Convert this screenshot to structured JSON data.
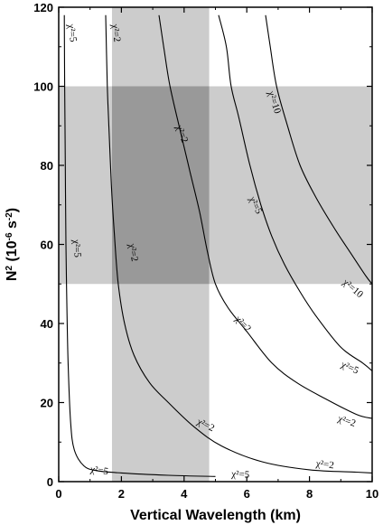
{
  "chart_data": {
    "type": "contour",
    "xlabel": "Vertical Wavelength (km)",
    "ylabel_main": "N",
    "ylabel_sup": "2",
    "ylabel_rest1": " (10",
    "ylabel_exp1": "-6",
    "ylabel_rest2": " s",
    "ylabel_exp2": "-2",
    "ylabel_end": ")",
    "xlim": [
      0,
      10
    ],
    "ylim": [
      0,
      120
    ],
    "x_ticks": [
      0,
      2,
      4,
      6,
      8,
      10
    ],
    "y_ticks": [
      0,
      20,
      40,
      60,
      80,
      100,
      120
    ],
    "x_tick_labels": [
      "0",
      "2",
      "4",
      "6",
      "8",
      "10"
    ],
    "y_tick_labels": [
      "0",
      "20",
      "40",
      "60",
      "80",
      "100",
      "120"
    ],
    "shaded_regions": [
      {
        "x": [
          1.7,
          4.8
        ],
        "y": [
          0,
          120
        ],
        "color": "#cccccc"
      },
      {
        "x": [
          0,
          10
        ],
        "y": [
          50,
          100
        ],
        "color": "#cccccc"
      }
    ],
    "overlap_color": "#999999",
    "contours": [
      {
        "name": "χ²=5 (left)",
        "points": [
          [
            0.18,
            118
          ],
          [
            0.19,
            100
          ],
          [
            0.21,
            80
          ],
          [
            0.23,
            60
          ],
          [
            0.26,
            45
          ],
          [
            0.3,
            30
          ],
          [
            0.38,
            15
          ],
          [
            0.5,
            8
          ],
          [
            0.8,
            4
          ],
          [
            1.2,
            2.8
          ],
          [
            2.0,
            2.2
          ],
          [
            3.5,
            1.6
          ],
          [
            5.0,
            1.3
          ]
        ]
      },
      {
        "name": "χ²=2 (left)",
        "points": [
          [
            1.5,
            118
          ],
          [
            1.55,
            100
          ],
          [
            1.6,
            90
          ],
          [
            1.68,
            75
          ],
          [
            1.78,
            62
          ],
          [
            1.9,
            50
          ],
          [
            2.1,
            40
          ],
          [
            2.4,
            32
          ],
          [
            2.9,
            25
          ],
          [
            3.5,
            20
          ],
          [
            4.3,
            14
          ],
          [
            5.2,
            9
          ],
          [
            6.5,
            5
          ],
          [
            8,
            3
          ],
          [
            9.5,
            2.4
          ],
          [
            10,
            2.2
          ]
        ]
      },
      {
        "name": "χ²=2 (right)",
        "points": [
          [
            3.2,
            118
          ],
          [
            3.35,
            110
          ],
          [
            3.55,
            100
          ],
          [
            3.9,
            88
          ],
          [
            4.2,
            78
          ],
          [
            4.5,
            68
          ],
          [
            4.75,
            58
          ],
          [
            5.0,
            50
          ],
          [
            5.4,
            44
          ],
          [
            6,
            38
          ],
          [
            6.8,
            30
          ],
          [
            7.6,
            25
          ],
          [
            8.5,
            21
          ],
          [
            9.5,
            17
          ],
          [
            10,
            16
          ]
        ]
      },
      {
        "name": "χ²=5",
        "points": [
          [
            5.1,
            118
          ],
          [
            5.35,
            110
          ],
          [
            5.5,
            100
          ],
          [
            5.75,
            92
          ],
          [
            6.1,
            80
          ],
          [
            6.45,
            70
          ],
          [
            6.8,
            62
          ],
          [
            7.2,
            55
          ],
          [
            7.7,
            48
          ],
          [
            8.2,
            42
          ],
          [
            9.0,
            34
          ],
          [
            9.7,
            30
          ],
          [
            10,
            28
          ]
        ]
      },
      {
        "name": "χ²=10",
        "points": [
          [
            6.6,
            118
          ],
          [
            6.75,
            110
          ],
          [
            6.95,
            100
          ],
          [
            7.3,
            90
          ],
          [
            7.7,
            80
          ],
          [
            8.2,
            72
          ],
          [
            8.8,
            64
          ],
          [
            9.3,
            58
          ],
          [
            9.8,
            52
          ],
          [
            10,
            50
          ]
        ]
      }
    ],
    "contour_labels": [
      {
        "text": "χ²=5",
        "x": 0.45,
        "y": 113.5,
        "angle": 82
      },
      {
        "text": "χ²=2",
        "x": 1.85,
        "y": 113.5,
        "angle": 82
      },
      {
        "text": "χ²=10",
        "x": 6.9,
        "y": 96,
        "angle": 72
      },
      {
        "text": "χ²=2",
        "x": 3.95,
        "y": 88,
        "angle": 68
      },
      {
        "text": "χ²=5",
        "x": 6.3,
        "y": 70,
        "angle": 64
      },
      {
        "text": "χ²=5",
        "x": 0.6,
        "y": 59,
        "angle": 85
      },
      {
        "text": "χ²=2",
        "x": 2.4,
        "y": 58,
        "angle": 80
      },
      {
        "text": "χ²=10",
        "x": 9.4,
        "y": 49,
        "angle": 40
      },
      {
        "text": "χ²=2",
        "x": 5.9,
        "y": 40,
        "angle": 46
      },
      {
        "text": "χ²=5",
        "x": 9.3,
        "y": 29,
        "angle": 24
      },
      {
        "text": "χ²=2",
        "x": 9.2,
        "y": 15.5,
        "angle": 18
      },
      {
        "text": "χ²=2",
        "x": 4.7,
        "y": 14.5,
        "angle": 26
      },
      {
        "text": "χ²=2",
        "x": 8.5,
        "y": 4.5,
        "angle": 7
      },
      {
        "text": "χ²=5",
        "x": 1.3,
        "y": 3,
        "angle": 8
      },
      {
        "text": "χ²=5",
        "x": 5.8,
        "y": 2,
        "angle": 3
      }
    ]
  }
}
